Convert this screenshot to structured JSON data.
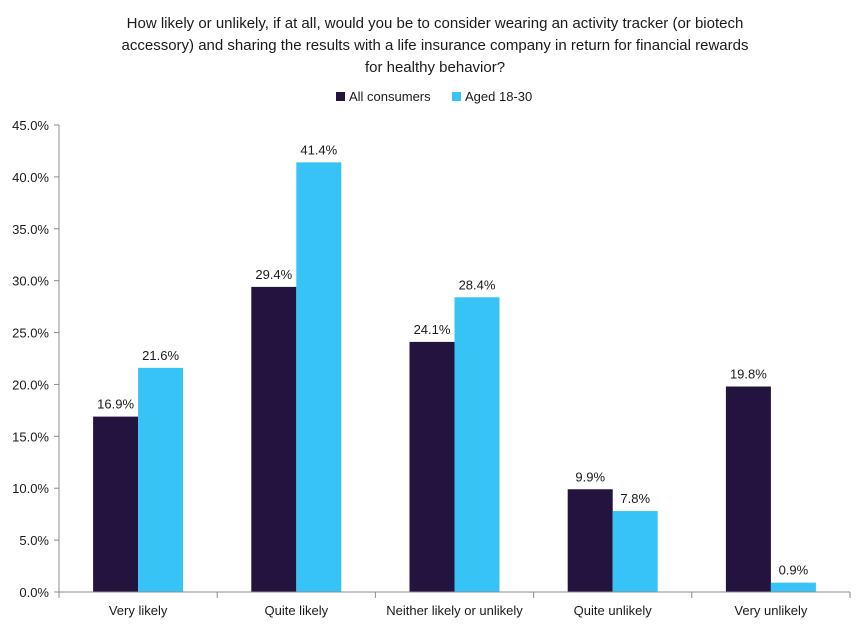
{
  "chart_data": {
    "type": "bar",
    "title_lines": [
      "How likely or unlikely, if at all, would you be to consider wearing an activity tracker (or biotech",
      "accessory) and sharing the results with a life insurance company in return for financial rewards",
      "for healthy behavior?"
    ],
    "categories": [
      "Very likely",
      "Quite likely",
      "Neither likely or unlikely",
      "Quite unlikely",
      "Very unlikely"
    ],
    "series": [
      {
        "name": "All consumers",
        "color": "#22133f",
        "values": [
          16.9,
          29.4,
          24.1,
          9.9,
          19.8
        ],
        "labels": [
          "16.9%",
          "29.4%",
          "24.1%",
          "9.9%",
          "19.8%"
        ]
      },
      {
        "name": "Aged 18-30",
        "color": "#38c3f7",
        "values": [
          21.6,
          41.4,
          28.4,
          7.8,
          0.9
        ],
        "labels": [
          "21.6%",
          "41.4%",
          "28.4%",
          "7.8%",
          "0.9%"
        ]
      }
    ],
    "ylim": [
      0,
      45
    ],
    "yticks": [
      0,
      5,
      10,
      15,
      20,
      25,
      30,
      35,
      40,
      45
    ],
    "ytick_labels": [
      "0.0%",
      "5.0%",
      "10.0%",
      "15.0%",
      "20.0%",
      "25.0%",
      "30.0%",
      "35.0%",
      "40.0%",
      "45.0%"
    ],
    "legend_position": "top-center",
    "grid": false
  }
}
